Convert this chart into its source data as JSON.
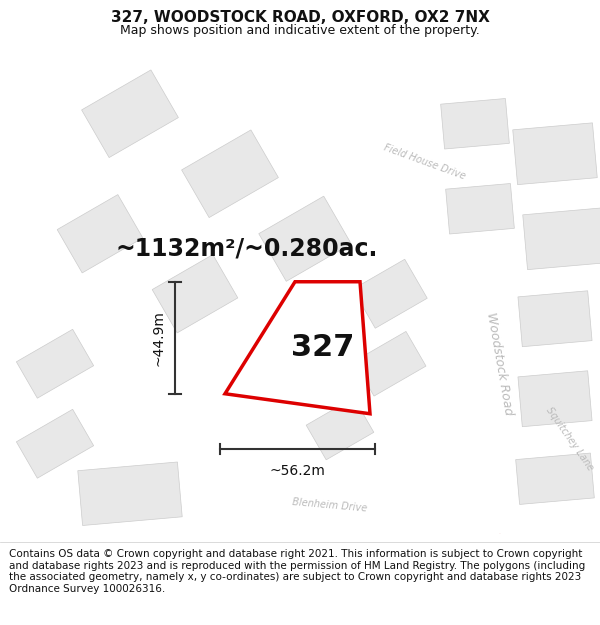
{
  "title": "327, WOODSTOCK ROAD, OXFORD, OX2 7NX",
  "subtitle": "Map shows position and indicative extent of the property.",
  "footer": "Contains OS data © Crown copyright and database right 2021. This information is subject to Crown copyright and database rights 2023 and is reproduced with the permission of HM Land Registry. The polygons (including the associated geometry, namely x, y co-ordinates) are subject to Crown copyright and database rights 2023 Ordnance Survey 100026316.",
  "area_label": "~1132m²/~0.280ac.",
  "width_label": "~56.2m",
  "height_label": "~44.9m",
  "property_number": "327",
  "map_bg": "#ffffff",
  "road_fill": "#ffffff",
  "road_edge": "#e8b0b0",
  "building_fill": "#e8e8e8",
  "building_edge": "#cccccc",
  "prop_fill": "#ffffff",
  "prop_edge": "#dd0000",
  "dim_color": "#333333",
  "road_label_color": "#bbbbbb",
  "text_color": "#111111",
  "title_fontsize": 11,
  "subtitle_fontsize": 9,
  "footer_fontsize": 7.5,
  "area_fontsize": 17,
  "prop_num_fontsize": 22,
  "dim_fontsize": 10,
  "road_label_fontsize": 9,
  "small_road_label_fontsize": 7
}
